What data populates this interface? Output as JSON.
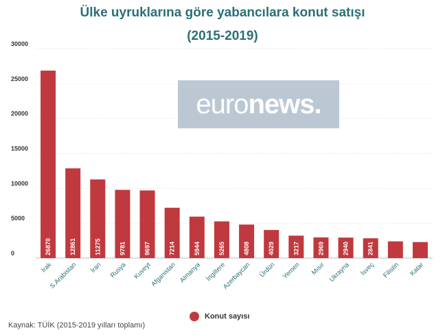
{
  "chart_data": {
    "type": "bar",
    "title_line1": "Ülke uyruklarına göre yabancılara konut satışı",
    "title_line2": "(2015-2019)",
    "categories": [
      "Irak",
      "S.Arabistan",
      "İran",
      "Rusya",
      "Kuveyt",
      "Afganistan",
      "Almanya",
      "İngiltere",
      "Azerbaycan",
      "Ürdün",
      "Yemen",
      "Mısır",
      "Ukrayna",
      "İsveç",
      "Filistin",
      "Katar"
    ],
    "values": [
      26870,
      12861,
      11275,
      9781,
      9697,
      7214,
      5944,
      5265,
      4808,
      4029,
      3217,
      2969,
      2940,
      2841,
      2400,
      2300
    ],
    "value_labels": [
      "26870",
      "12861",
      "11275",
      "9781",
      "9697",
      "7214",
      "5944",
      "5265",
      "4808",
      "4029",
      "3217",
      "2969",
      "2940",
      "2841",
      "",
      ""
    ],
    "ylim": [
      0,
      30000
    ],
    "yticks": [
      0,
      5000,
      10000,
      15000,
      20000,
      25000,
      30000
    ],
    "ytick_labels": [
      "0",
      "5000",
      "10000",
      "15000",
      "20000",
      "25000",
      "30000"
    ],
    "legend": [
      "Konut sayısı"
    ],
    "legend_position": "bottom",
    "series_color": "#c0393e",
    "grid": true
  },
  "source_note": "Kaynak: TÜİK (2015-2019 yılları toplamı)",
  "watermark": {
    "part1": "euro",
    "part2": "news."
  },
  "colors": {
    "title": "#2b6f76",
    "bar": "#c0393e"
  }
}
